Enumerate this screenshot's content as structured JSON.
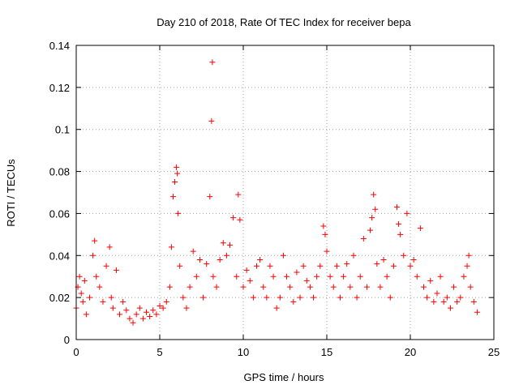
{
  "chart_data": {
    "type": "scatter",
    "title": "Day 210 of 2018, Rate Of TEC Index for receiver bepa",
    "xlabel": "GPS time / hours",
    "ylabel": "ROTI / TECUs",
    "xlim": [
      0,
      25
    ],
    "ylim": [
      0,
      0.14
    ],
    "xticks": [
      0,
      5,
      10,
      15,
      20,
      25
    ],
    "xtick_labels": [
      "0",
      "5",
      "10",
      "15",
      "20",
      "25"
    ],
    "yticks": [
      0,
      0.02,
      0.04,
      0.06,
      0.08,
      0.1,
      0.12,
      0.14
    ],
    "ytick_labels": [
      "0",
      "0.02",
      "0.04",
      "0.06",
      "0.08",
      "0.1",
      "0.12",
      "0.14"
    ],
    "grid": true,
    "marker": "+",
    "series": [
      {
        "name": "ROTI",
        "color": "#ff0000",
        "x": [
          0.0,
          0.1,
          0.2,
          0.3,
          0.4,
          0.5,
          0.6,
          0.8,
          1.0,
          1.1,
          1.2,
          1.4,
          1.6,
          1.8,
          2.0,
          2.1,
          2.2,
          2.4,
          2.6,
          2.8,
          3.0,
          3.2,
          3.4,
          3.6,
          3.8,
          4.0,
          4.2,
          4.4,
          4.6,
          4.8,
          5.0,
          5.2,
          5.4,
          5.6,
          5.7,
          5.8,
          5.9,
          6.0,
          6.05,
          6.1,
          6.2,
          6.4,
          6.6,
          6.8,
          7.0,
          7.2,
          7.4,
          7.6,
          7.8,
          8.0,
          8.1,
          8.15,
          8.2,
          8.4,
          8.6,
          8.8,
          9.0,
          9.2,
          9.4,
          9.6,
          9.7,
          9.8,
          10.0,
          10.2,
          10.4,
          10.6,
          10.8,
          11.0,
          11.2,
          11.4,
          11.6,
          11.8,
          12.0,
          12.2,
          12.4,
          12.6,
          12.8,
          13.0,
          13.2,
          13.4,
          13.6,
          13.8,
          14.0,
          14.2,
          14.4,
          14.6,
          14.8,
          14.9,
          15.0,
          15.2,
          15.4,
          15.6,
          15.8,
          16.0,
          16.2,
          16.4,
          16.6,
          16.8,
          17.0,
          17.2,
          17.4,
          17.6,
          17.7,
          17.8,
          17.9,
          18.0,
          18.2,
          18.4,
          18.6,
          18.8,
          19.0,
          19.2,
          19.3,
          19.4,
          19.6,
          19.8,
          20.0,
          20.2,
          20.4,
          20.6,
          20.8,
          21.0,
          21.2,
          21.4,
          21.6,
          21.8,
          22.0,
          22.2,
          22.4,
          22.6,
          22.8,
          23.0,
          23.2,
          23.4,
          23.5,
          23.6,
          23.8,
          24.0
        ],
        "y": [
          0.015,
          0.025,
          0.03,
          0.022,
          0.018,
          0.028,
          0.012,
          0.02,
          0.04,
          0.047,
          0.03,
          0.025,
          0.018,
          0.035,
          0.044,
          0.02,
          0.015,
          0.033,
          0.012,
          0.018,
          0.014,
          0.01,
          0.008,
          0.012,
          0.015,
          0.01,
          0.013,
          0.011,
          0.014,
          0.012,
          0.016,
          0.015,
          0.018,
          0.025,
          0.044,
          0.068,
          0.075,
          0.082,
          0.079,
          0.06,
          0.035,
          0.02,
          0.015,
          0.025,
          0.042,
          0.03,
          0.038,
          0.02,
          0.036,
          0.068,
          0.104,
          0.132,
          0.03,
          0.025,
          0.038,
          0.046,
          0.04,
          0.045,
          0.058,
          0.03,
          0.069,
          0.057,
          0.025,
          0.033,
          0.028,
          0.02,
          0.035,
          0.038,
          0.025,
          0.02,
          0.035,
          0.03,
          0.015,
          0.02,
          0.04,
          0.03,
          0.025,
          0.018,
          0.032,
          0.02,
          0.035,
          0.028,
          0.025,
          0.02,
          0.03,
          0.035,
          0.054,
          0.05,
          0.042,
          0.03,
          0.025,
          0.035,
          0.02,
          0.03,
          0.036,
          0.025,
          0.04,
          0.02,
          0.03,
          0.048,
          0.025,
          0.052,
          0.058,
          0.069,
          0.062,
          0.036,
          0.025,
          0.038,
          0.03,
          0.02,
          0.035,
          0.063,
          0.055,
          0.05,
          0.04,
          0.06,
          0.035,
          0.038,
          0.03,
          0.053,
          0.025,
          0.02,
          0.028,
          0.018,
          0.022,
          0.03,
          0.018,
          0.02,
          0.015,
          0.025,
          0.018,
          0.02,
          0.03,
          0.035,
          0.04,
          0.025,
          0.018,
          0.013
        ]
      }
    ]
  }
}
